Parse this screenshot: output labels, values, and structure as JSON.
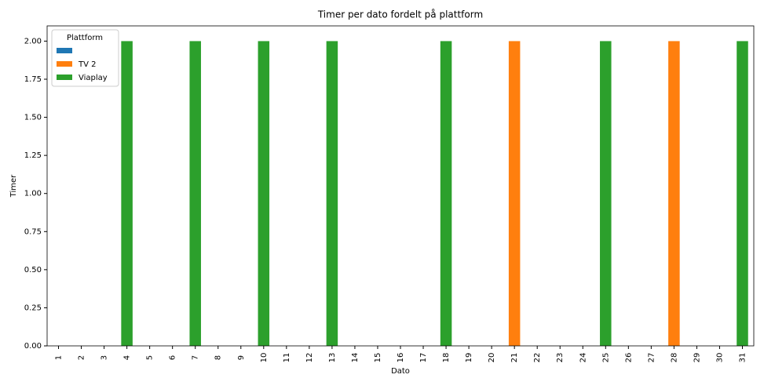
{
  "chart_data": {
    "type": "bar",
    "stacked": true,
    "title": "Timer per dato fordelt på plattform",
    "x_label": "Dato",
    "y_label": "Timer",
    "legend_title": "Plattform",
    "legend": "upper left",
    "categories": [
      "1",
      "2",
      "3",
      "4",
      "5",
      "6",
      "7",
      "8",
      "9",
      "10",
      "11",
      "12",
      "13",
      "14",
      "15",
      "16",
      "17",
      "18",
      "19",
      "20",
      "21",
      "22",
      "23",
      "24",
      "25",
      "26",
      "27",
      "28",
      "29",
      "30",
      "31"
    ],
    "series": [
      {
        "name": null,
        "color": "#1f77b4",
        "values": [
          0,
          0,
          0,
          0,
          0,
          0,
          0,
          0,
          0,
          0,
          0,
          0,
          0,
          0,
          0,
          0,
          0,
          0,
          0,
          0,
          0,
          0,
          0,
          0,
          0,
          0,
          0,
          0,
          0,
          0,
          0
        ]
      },
      {
        "name": "TV 2",
        "color": "#ff7f0e",
        "values": [
          0,
          0,
          0,
          0,
          0,
          0,
          0,
          0,
          0,
          0,
          0,
          0,
          0,
          0,
          0,
          0,
          0,
          0,
          0,
          0,
          2,
          0,
          0,
          0,
          0,
          0,
          0,
          2,
          0,
          0,
          0
        ]
      },
      {
        "name": "Viaplay",
        "color": "#2ca02c",
        "values": [
          0,
          0,
          0,
          2,
          0,
          0,
          2,
          0,
          0,
          2,
          0,
          0,
          2,
          0,
          0,
          0,
          0,
          2,
          0,
          0,
          0,
          0,
          0,
          0,
          2,
          0,
          0,
          0,
          0,
          0,
          2
        ]
      }
    ],
    "ylim": [
      0,
      2.1
    ],
    "yticks": [
      {
        "value": 0,
        "label": "0.00"
      },
      {
        "value": 0.25,
        "label": "0.25"
      },
      {
        "value": 0.5,
        "label": "0.50"
      },
      {
        "value": 0.75,
        "label": "0.75"
      },
      {
        "value": 1,
        "label": "1.00"
      },
      {
        "value": 1.25,
        "label": "1.25"
      },
      {
        "value": 1.5,
        "label": "1.50"
      },
      {
        "value": 1.75,
        "label": "1.75"
      },
      {
        "value": 2,
        "label": "2.00"
      }
    ],
    "grid": false
  }
}
